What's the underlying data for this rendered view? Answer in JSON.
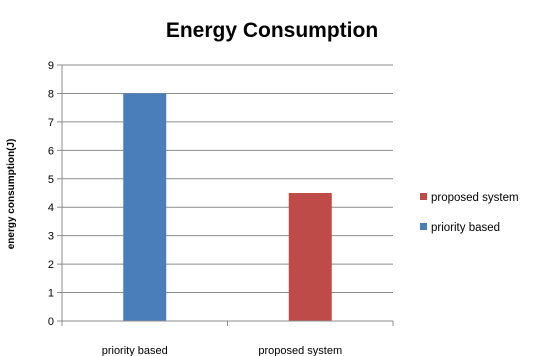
{
  "chart_data": {
    "type": "bar",
    "title": "Energy Consumption",
    "xlabel": "",
    "ylabel": "energy consumption(J)",
    "ylim": [
      0,
      9
    ],
    "yticks": [
      0,
      1,
      2,
      3,
      4,
      5,
      6,
      7,
      8,
      9
    ],
    "categories": [
      "priority based",
      "proposed system"
    ],
    "series": [
      {
        "name": "priority based",
        "values": [
          8,
          null
        ],
        "color": "#4a7ebb"
      },
      {
        "name": "proposed system",
        "values": [
          null,
          4.5
        ],
        "color": "#be4b48"
      }
    ],
    "legend_order": [
      "proposed system",
      "priority based"
    ],
    "legend_position": "right",
    "grid": true
  }
}
